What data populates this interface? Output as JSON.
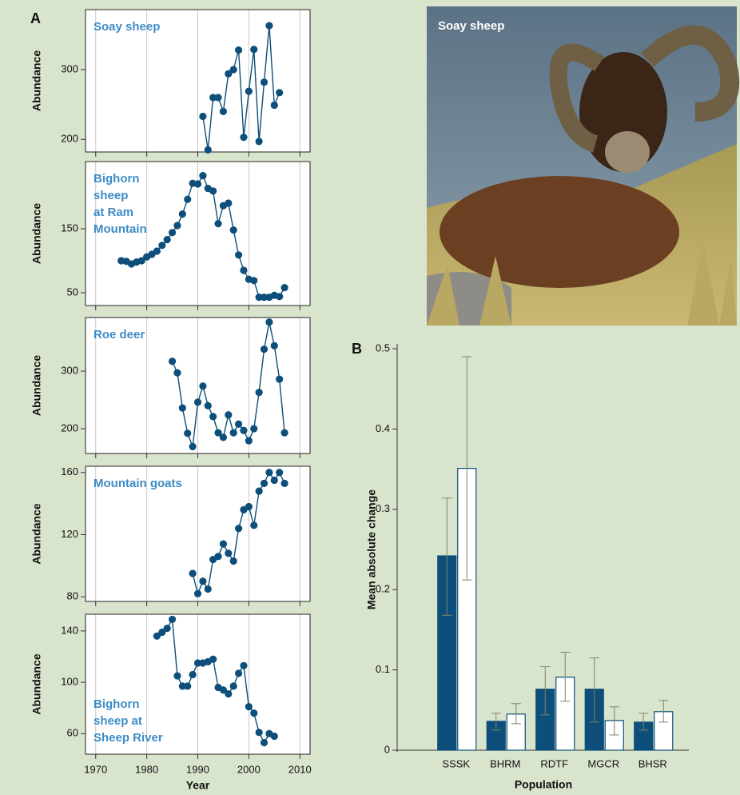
{
  "chart_data": [
    {
      "type": "line",
      "panel_label": "A",
      "title": [
        "Soay sheep"
      ],
      "title_position": "top-left",
      "ylabel": "Abundance",
      "color": "#0d4f7a",
      "x": [
        1991,
        1992,
        1993,
        1994,
        1995,
        1996,
        1997,
        1998,
        1999,
        2000,
        2001,
        2002,
        2003,
        2004,
        2005,
        2006
      ],
      "values": [
        233,
        185,
        260,
        260,
        240,
        294,
        300,
        328,
        203,
        269,
        329,
        197,
        282,
        363,
        249,
        267
      ],
      "xlim": [
        1968,
        2012
      ],
      "xticks": [
        1970,
        1980,
        1990,
        2000,
        2010
      ],
      "ylim": [
        182,
        386
      ],
      "yticks": [
        200,
        300
      ],
      "grid": true,
      "xtick_labels": false
    },
    {
      "type": "line",
      "title": [
        "Bighorn",
        "sheep",
        "at Ram",
        "Mountain"
      ],
      "title_position": "top-left",
      "ylabel": "Abundance",
      "color": "#0d4f7a",
      "x": [
        1975,
        1976,
        1977,
        1978,
        1979,
        1980,
        1981,
        1982,
        1983,
        1984,
        1985,
        1986,
        1987,
        1988,
        1989,
        1990,
        1991,
        1992,
        1993,
        1994,
        1995,
        1996,
        1997,
        1998,
        1999,
        2000,
        2001,
        2002,
        2003,
        2004,
        2005,
        2006,
        2007
      ],
      "values": [
        100,
        99,
        95,
        98,
        100,
        106,
        110,
        115,
        124,
        133,
        144,
        155,
        173,
        196,
        221,
        220,
        233,
        213,
        209,
        158,
        186,
        190,
        148,
        109,
        85,
        71,
        69,
        43,
        43,
        43,
        46,
        44,
        58
      ],
      "xlim": [
        1968,
        2012
      ],
      "xticks": [
        1970,
        1980,
        1990,
        2000,
        2010
      ],
      "ylim": [
        30,
        255
      ],
      "yticks": [
        50,
        150
      ],
      "grid": true,
      "xtick_labels": false
    },
    {
      "type": "line",
      "title": [
        "Roe deer"
      ],
      "title_position": "top-left",
      "ylabel": "Abundance",
      "color": "#0d4f7a",
      "x": [
        1985,
        1986,
        1987,
        1988,
        1989,
        1990,
        1991,
        1992,
        1993,
        1994,
        1995,
        1996,
        1997,
        1998,
        1999,
        2000,
        2001,
        2002,
        2003,
        2004,
        2005,
        2006,
        2007
      ],
      "values": [
        317,
        297,
        236,
        192,
        169,
        246,
        274,
        240,
        221,
        193,
        185,
        224,
        193,
        208,
        197,
        179,
        200,
        263,
        338,
        385,
        344,
        286,
        193
      ],
      "xlim": [
        1968,
        2012
      ],
      "xticks": [
        1970,
        1980,
        1990,
        2000,
        2010
      ],
      "ylim": [
        157,
        393
      ],
      "yticks": [
        200,
        300
      ],
      "grid": true,
      "xtick_labels": false
    },
    {
      "type": "line",
      "title": [
        "Mountain goats"
      ],
      "title_position": "top-left",
      "ylabel": "Abundance",
      "color": "#0d4f7a",
      "x": [
        1989,
        1990,
        1991,
        1992,
        1993,
        1994,
        1995,
        1996,
        1997,
        1998,
        1999,
        2000,
        2001,
        2002,
        2003,
        2004,
        2005,
        2006,
        2007
      ],
      "values": [
        95,
        82,
        90,
        85,
        104,
        106,
        114,
        108,
        103,
        124,
        136,
        138,
        126,
        148,
        153,
        160,
        155,
        160,
        153
      ],
      "xlim": [
        1968,
        2012
      ],
      "xticks": [
        1970,
        1980,
        1990,
        2000,
        2010
      ],
      "ylim": [
        77,
        164
      ],
      "yticks": [
        80,
        120,
        160
      ],
      "grid": true,
      "xtick_labels": false
    },
    {
      "type": "line",
      "title": [
        "Bighorn",
        "sheep at",
        "Sheep River"
      ],
      "title_position": "bottom-left",
      "ylabel": "Abundance",
      "xlabel": "Year",
      "color": "#0d4f7a",
      "x": [
        1982,
        1983,
        1984,
        1985,
        1986,
        1987,
        1988,
        1989,
        1990,
        1991,
        1992,
        1993,
        1994,
        1995,
        1996,
        1997,
        1998,
        1999,
        2000,
        2001,
        2002,
        2003,
        2004,
        2005
      ],
      "values": [
        136,
        139,
        142,
        149,
        105,
        97,
        97,
        106,
        115,
        115,
        116,
        118,
        96,
        94,
        91,
        97,
        107,
        113,
        81,
        76,
        61,
        53,
        60,
        58
      ],
      "xlim": [
        1968,
        2012
      ],
      "xticks": [
        1970,
        1980,
        1990,
        2000,
        2010
      ],
      "ylim": [
        44,
        153
      ],
      "yticks": [
        60,
        100,
        140
      ],
      "grid": true,
      "xtick_labels": true
    },
    {
      "type": "bar",
      "panel_label": "B",
      "xlabel": "Population",
      "ylabel": "Mean absolute change",
      "categories": [
        "SSSK",
        "BHRM",
        "RDTF",
        "MGCR",
        "BHSR"
      ],
      "series": [
        {
          "color": "#0d4f7a",
          "values": [
            0.242,
            0.036,
            0.076,
            0.076,
            0.035
          ],
          "lower": [
            0.168,
            0.025,
            0.044,
            0.035,
            0.025
          ],
          "upper": [
            0.314,
            0.046,
            0.104,
            0.115,
            0.046
          ]
        },
        {
          "color": "#ffffff",
          "values": [
            0.351,
            0.045,
            0.091,
            0.037,
            0.048
          ],
          "lower": [
            0.212,
            0.033,
            0.061,
            0.019,
            0.035
          ],
          "upper": [
            0.49,
            0.058,
            0.122,
            0.054,
            0.062
          ]
        }
      ],
      "error_color": "#7d8466",
      "ylim": [
        0,
        0.5
      ],
      "yticks": [
        0,
        0.1,
        0.2,
        0.3,
        0.4,
        0.5
      ]
    }
  ],
  "photo": {
    "caption": "Soay sheep"
  }
}
